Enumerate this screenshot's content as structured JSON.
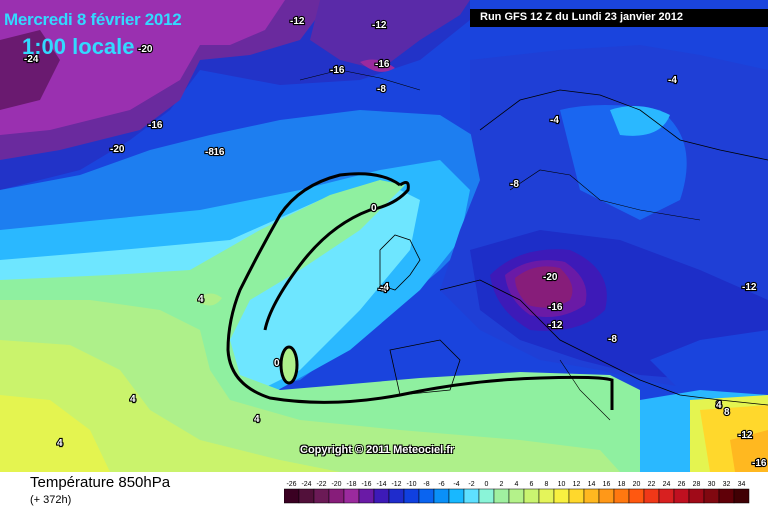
{
  "header": {
    "date_title": "Mercredi 8 février 2012",
    "time_title": "1:00 locale",
    "run_info": "Run GFS 12 Z du Lundi 23 janvier 2012"
  },
  "map": {
    "copyright": "Copyright © 2011 Meteociel.fr",
    "contour_labels": [
      "-24",
      "-20",
      "-16",
      "-12",
      "-16",
      "-12",
      "-16",
      "-8",
      "-20",
      "-16",
      "-8",
      "-4",
      "-4",
      "-8",
      "-4",
      "0",
      "-20",
      "-16",
      "-12",
      "-8",
      "-12",
      "4",
      "-4",
      "0",
      "0",
      "4",
      "4",
      "8",
      "4",
      "8",
      "-12",
      "-16",
      "4"
    ]
  },
  "footer": {
    "variable": "Température 850hPa",
    "forecast_hour": "(+ 372h)"
  },
  "legend": {
    "ticks": [
      "-26",
      "-24",
      "-22",
      "-20",
      "-18",
      "-16",
      "-14",
      "-12",
      "-10",
      "-8",
      "-6",
      "-4",
      "-2",
      "0",
      "2",
      "4",
      "6",
      "8",
      "10",
      "12",
      "14",
      "16",
      "18",
      "20",
      "22",
      "24",
      "26",
      "28",
      "30",
      "32",
      "34"
    ],
    "colors": [
      "#3a0022",
      "#52103a",
      "#6b1a56",
      "#871d7a",
      "#9b2a9e",
      "#6a1aa6",
      "#3d1ab8",
      "#1f2ccc",
      "#1040e0",
      "#0a64f0",
      "#0a90f8",
      "#18b8ff",
      "#5ee0ff",
      "#8af4d8",
      "#a0f0a0",
      "#b4f28a",
      "#caf470",
      "#e4f45a",
      "#f8f040",
      "#ffd82c",
      "#ffb820",
      "#ff9818",
      "#ff7810",
      "#ff5810",
      "#f03818",
      "#d82020",
      "#c01020",
      "#a00a18",
      "#800810",
      "#600008",
      "#400004"
    ]
  }
}
